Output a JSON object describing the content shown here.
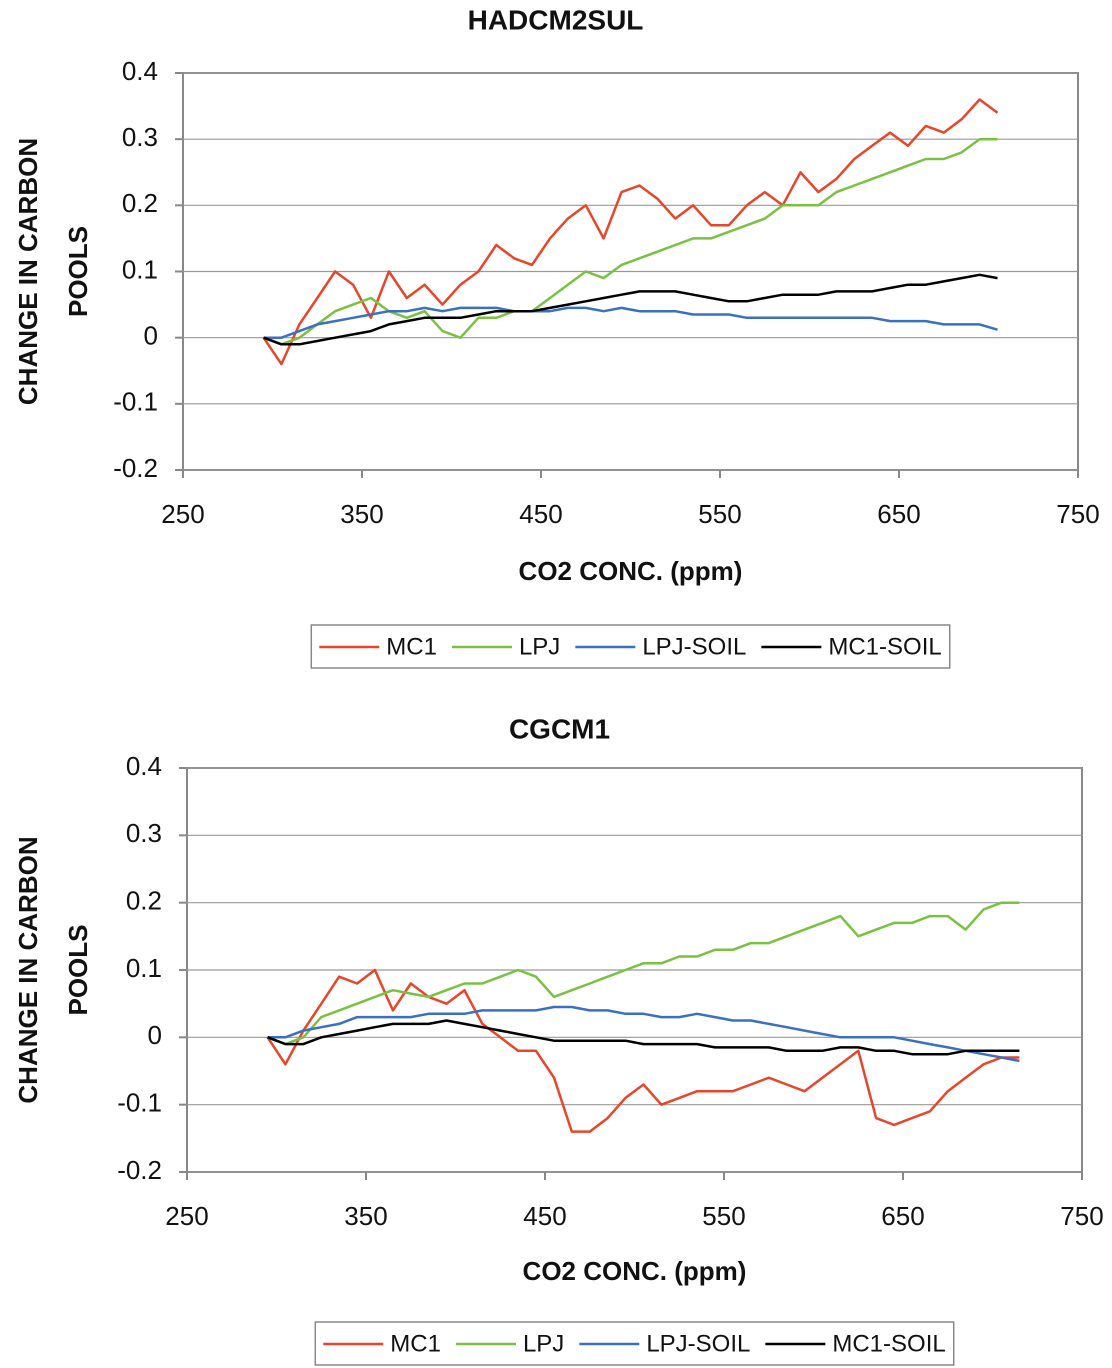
{
  "chart_data": [
    {
      "type": "line",
      "title": "HADCM2SUL",
      "xlabel": "CO2 CONC. (ppm)",
      "ylabel": [
        "CHANGE IN CARBON",
        "POOLS"
      ],
      "xlim": [
        250,
        750
      ],
      "xticks": [
        250,
        350,
        450,
        550,
        650,
        750
      ],
      "ylim": [
        -0.2,
        0.4
      ],
      "yticks": [
        -0.2,
        -0.1,
        0,
        0.1,
        0.2,
        0.3,
        0.4
      ],
      "grid": true,
      "legend": "bottom",
      "x": [
        295,
        305,
        315,
        325,
        335,
        345,
        355,
        365,
        375,
        385,
        395,
        405,
        415,
        425,
        435,
        445,
        455,
        465,
        475,
        485,
        495,
        505,
        515,
        525,
        535,
        545,
        555,
        565,
        575,
        585,
        595,
        605,
        615,
        625,
        635,
        645,
        655,
        665,
        675,
        685,
        695,
        705
      ],
      "series": [
        {
          "name": "MC1",
          "color": "#e8452a",
          "values": [
            0,
            -0.04,
            0.02,
            0.06,
            0.1,
            0.08,
            0.03,
            0.1,
            0.06,
            0.08,
            0.05,
            0.08,
            0.1,
            0.14,
            0.12,
            0.11,
            0.15,
            0.18,
            0.2,
            0.15,
            0.22,
            0.23,
            0.21,
            0.18,
            0.2,
            0.17,
            0.17,
            0.2,
            0.22,
            0.2,
            0.25,
            0.22,
            0.24,
            0.27,
            0.29,
            0.31,
            0.29,
            0.32,
            0.31,
            0.33,
            0.36,
            0.34
          ]
        },
        {
          "name": "LPJ",
          "color": "#7ac142",
          "values": [
            0,
            -0.01,
            0,
            0.02,
            0.04,
            0.05,
            0.06,
            0.04,
            0.03,
            0.04,
            0.01,
            0,
            0.03,
            0.03,
            0.04,
            0.04,
            0.06,
            0.08,
            0.1,
            0.09,
            0.11,
            0.12,
            0.13,
            0.14,
            0.15,
            0.15,
            0.16,
            0.17,
            0.18,
            0.2,
            0.2,
            0.2,
            0.22,
            0.23,
            0.24,
            0.25,
            0.26,
            0.27,
            0.27,
            0.28,
            0.3,
            0.3
          ]
        },
        {
          "name": "LPJ-SOIL",
          "color": "#3a6fc4",
          "values": [
            0,
            0,
            0.01,
            0.02,
            0.025,
            0.03,
            0.035,
            0.04,
            0.04,
            0.045,
            0.04,
            0.045,
            0.045,
            0.045,
            0.04,
            0.04,
            0.04,
            0.045,
            0.045,
            0.04,
            0.045,
            0.04,
            0.04,
            0.04,
            0.035,
            0.035,
            0.035,
            0.03,
            0.03,
            0.03,
            0.03,
            0.03,
            0.03,
            0.03,
            0.03,
            0.025,
            0.025,
            0.025,
            0.02,
            0.02,
            0.02,
            0.012
          ]
        },
        {
          "name": "MC1-SOIL",
          "color": "#000000",
          "values": [
            0,
            -0.01,
            -0.01,
            -0.005,
            0,
            0.005,
            0.01,
            0.02,
            0.025,
            0.03,
            0.03,
            0.03,
            0.035,
            0.04,
            0.04,
            0.04,
            0.045,
            0.05,
            0.055,
            0.06,
            0.065,
            0.07,
            0.07,
            0.07,
            0.065,
            0.06,
            0.055,
            0.055,
            0.06,
            0.065,
            0.065,
            0.065,
            0.07,
            0.07,
            0.07,
            0.075,
            0.08,
            0.08,
            0.085,
            0.09,
            0.095,
            0.09
          ]
        }
      ]
    },
    {
      "type": "line",
      "title": "CGCM1",
      "xlabel": "CO2 CONC. (ppm)",
      "ylabel": [
        "CHANGE IN CARBON",
        "POOLS"
      ],
      "xlim": [
        250,
        750
      ],
      "xticks": [
        250,
        350,
        450,
        550,
        650,
        750
      ],
      "ylim": [
        -0.2,
        0.4
      ],
      "yticks": [
        -0.2,
        -0.1,
        0,
        0.1,
        0.2,
        0.3,
        0.4
      ],
      "grid": true,
      "legend": "bottom",
      "x": [
        295,
        305,
        315,
        325,
        335,
        345,
        355,
        365,
        375,
        385,
        395,
        405,
        415,
        425,
        435,
        445,
        455,
        465,
        475,
        485,
        495,
        505,
        515,
        525,
        535,
        545,
        555,
        565,
        575,
        585,
        595,
        605,
        615,
        625,
        635,
        645,
        655,
        665,
        675,
        685,
        695,
        705,
        715
      ],
      "series": [
        {
          "name": "MC1",
          "color": "#e8452a",
          "values": [
            0,
            -0.04,
            0.01,
            0.05,
            0.09,
            0.08,
            0.1,
            0.04,
            0.08,
            0.06,
            0.05,
            0.07,
            0.02,
            0,
            -0.02,
            -0.02,
            -0.06,
            -0.14,
            -0.14,
            -0.12,
            -0.09,
            -0.07,
            -0.1,
            -0.09,
            -0.08,
            -0.08,
            -0.08,
            -0.07,
            -0.06,
            -0.07,
            -0.08,
            -0.06,
            -0.04,
            -0.02,
            -0.12,
            -0.13,
            -0.12,
            -0.11,
            -0.08,
            -0.06,
            -0.04,
            -0.03,
            -0.03
          ]
        },
        {
          "name": "LPJ",
          "color": "#7ac142",
          "values": [
            0,
            -0.01,
            0,
            0.03,
            0.04,
            0.05,
            0.06,
            0.07,
            0.065,
            0.06,
            0.07,
            0.08,
            0.08,
            0.09,
            0.1,
            0.09,
            0.06,
            0.07,
            0.08,
            0.09,
            0.1,
            0.11,
            0.11,
            0.12,
            0.12,
            0.13,
            0.13,
            0.14,
            0.14,
            0.15,
            0.16,
            0.17,
            0.18,
            0.15,
            0.16,
            0.17,
            0.17,
            0.18,
            0.18,
            0.16,
            0.19,
            0.2,
            0.2
          ]
        },
        {
          "name": "LPJ-SOIL",
          "color": "#3a6fc4",
          "values": [
            0,
            0,
            0.01,
            0.015,
            0.02,
            0.03,
            0.03,
            0.03,
            0.03,
            0.035,
            0.035,
            0.035,
            0.04,
            0.04,
            0.04,
            0.04,
            0.045,
            0.045,
            0.04,
            0.04,
            0.035,
            0.035,
            0.03,
            0.03,
            0.035,
            0.03,
            0.025,
            0.025,
            0.02,
            0.015,
            0.01,
            0.005,
            0,
            0,
            0,
            0,
            -0.005,
            -0.01,
            -0.015,
            -0.02,
            -0.025,
            -0.03,
            -0.035
          ]
        },
        {
          "name": "MC1-SOIL",
          "color": "#000000",
          "values": [
            0,
            -0.01,
            -0.01,
            0,
            0.005,
            0.01,
            0.015,
            0.02,
            0.02,
            0.02,
            0.025,
            0.02,
            0.015,
            0.01,
            0.005,
            0,
            -0.005,
            -0.005,
            -0.005,
            -0.005,
            -0.005,
            -0.01,
            -0.01,
            -0.01,
            -0.01,
            -0.015,
            -0.015,
            -0.015,
            -0.015,
            -0.02,
            -0.02,
            -0.02,
            -0.015,
            -0.015,
            -0.02,
            -0.02,
            -0.025,
            -0.025,
            -0.025,
            -0.02,
            -0.02,
            -0.02,
            -0.02
          ]
        }
      ]
    }
  ]
}
